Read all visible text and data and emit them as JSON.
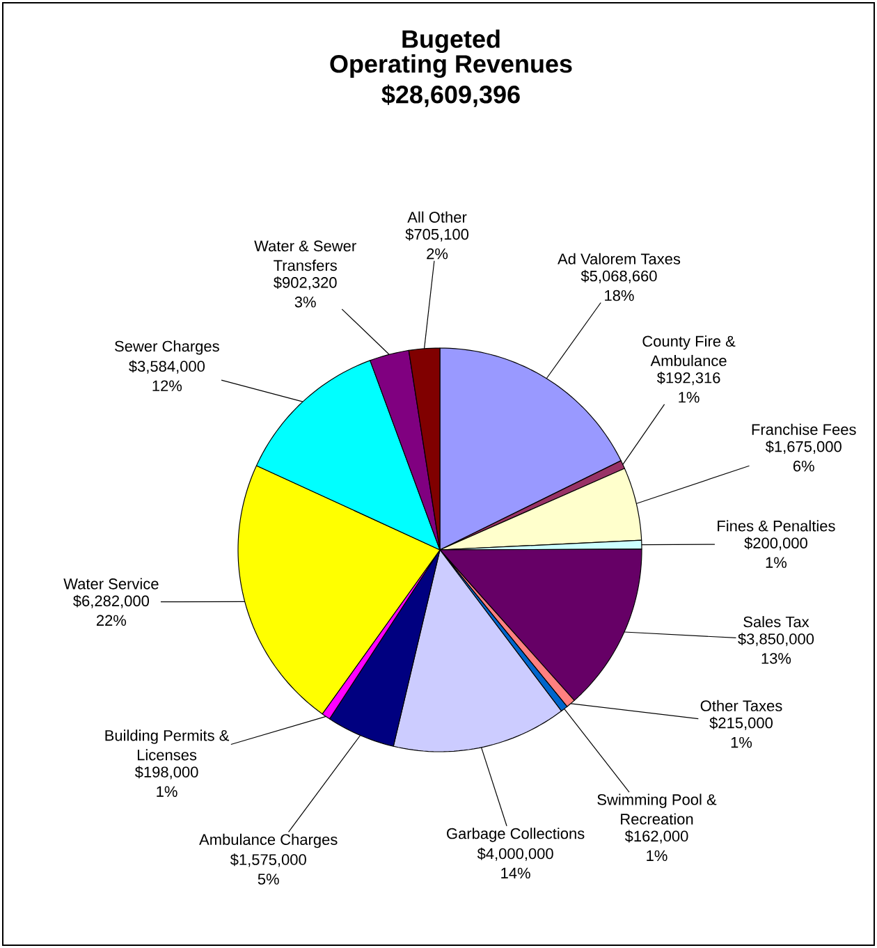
{
  "chart_data": {
    "type": "pie",
    "title": "Bugeted",
    "subtitle": "Operating Revenues $28,609,396",
    "categories": [
      "Ad Valorem Taxes",
      "County Fire & Ambulance",
      "Franchise Fees",
      "Fines & Penalties",
      "Sales Tax",
      "Other Taxes",
      "Swimming Pool & Recreation",
      "Garbage Collections",
      "Ambulance Charges",
      "Building Permits & Licenses",
      "Water Service",
      "Sewer Charges",
      "Water & Sewer Transfers",
      "All Other"
    ],
    "values": [
      5068660,
      192316,
      1675000,
      200000,
      3850000,
      215000,
      162000,
      4000000,
      1575000,
      198000,
      6282000,
      3584000,
      902320,
      705100
    ],
    "value_labels": [
      "$5,068,660 18%",
      "$192,316 1%",
      "$1,675,000 6%",
      "$200,000 1%",
      "$3,850,000 13%",
      "$215,000 1%",
      "$162,000 1%",
      "$4,000,000 14%",
      "$1,575,000 5%",
      "$198,000 1%",
      "$6,282,000 22%",
      "$3,584,000 12%",
      "$902,320 3%",
      "$705,100 2%"
    ],
    "colors": [
      "#9999ff",
      "#993366",
      "#ffffcc",
      "#ccffff",
      "#660066",
      "#ff8080",
      "#0066cc",
      "#ccccff",
      "#000080",
      "#ff00ff",
      "#ffff00",
      "#00ffff",
      "#800080",
      "#800000"
    ]
  }
}
